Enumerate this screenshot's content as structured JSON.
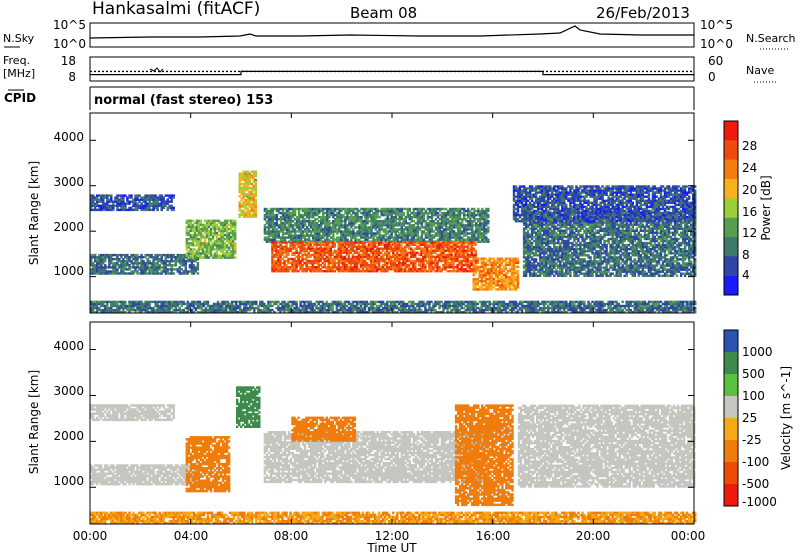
{
  "header": {
    "station": "Hankasalmi (fitACF)",
    "beam": "Beam 08",
    "date": "26/Feb/2013"
  },
  "noise_panel": {
    "left_label": "N.Sky",
    "right_label": "N.Search",
    "left_ticks": [
      "10^5",
      "10^0"
    ],
    "right_ticks": [
      "10^5",
      "10^0"
    ]
  },
  "freq_panel": {
    "left_label_1": "Freq.",
    "left_label_2": "[MHz]",
    "left_ticks": [
      "18",
      "8"
    ],
    "right_label": "Nave",
    "right_ticks": [
      "60",
      "0"
    ],
    "freq_mhz": [
      {
        "t": 0,
        "v": 10.0
      },
      {
        "t": 24,
        "v": 10.0
      }
    ],
    "nave": [
      {
        "t": 0,
        "v": 16
      },
      {
        "t": 6,
        "v": 16
      },
      {
        "t": 6,
        "v": 24
      },
      {
        "t": 18,
        "v": 24
      },
      {
        "t": 18,
        "v": 16
      },
      {
        "t": 24,
        "v": 16
      }
    ]
  },
  "cpid": {
    "label": "CPID",
    "text": "normal (fast stereo) 153"
  },
  "x_axis": {
    "label": "Time UT",
    "ticks": [
      "00:00",
      "04:00",
      "08:00",
      "12:00",
      "16:00",
      "20:00",
      "00:00"
    ],
    "range_hours": [
      0,
      24
    ]
  },
  "colors": {
    "power": [
      "#1b1bff",
      "#2e46a8",
      "#3f7a6a",
      "#55a050",
      "#9ccd3a",
      "#f5b21e",
      "#f47c12",
      "#f04a0c",
      "#ee1a0c"
    ],
    "velocity": [
      "#2d53b0",
      "#3f8a4c",
      "#58c23f",
      "#c6c6c0",
      "#f5a914",
      "#f07c0c",
      "#ef4a08",
      "#ee1a0c"
    ]
  },
  "chart_data": [
    {
      "type": "heatmap",
      "title": "Power",
      "ylabel": "Slant Range [km]",
      "xlabel": "",
      "ylim": [
        200,
        4600
      ],
      "xlim": [
        0,
        24
      ],
      "y_ticks": [
        "1000",
        "2000",
        "3000",
        "4000"
      ],
      "colorbar": {
        "label": "Power [dB]",
        "ticks": [
          "4",
          "8",
          "12",
          "16",
          "20",
          "24",
          "28"
        ],
        "range": [
          0,
          32
        ]
      },
      "regions": [
        {
          "t0": 0.0,
          "t1": 4.3,
          "r0": 1050,
          "r1": 1500,
          "value": 8
        },
        {
          "t0": 0.0,
          "t1": 3.3,
          "r0": 2450,
          "r1": 2800,
          "value": 6
        },
        {
          "t0": 3.8,
          "t1": 5.8,
          "r0": 1400,
          "r1": 2250,
          "value": 14
        },
        {
          "t0": 5.9,
          "t1": 6.6,
          "r0": 2300,
          "r1": 3300,
          "value": 18
        },
        {
          "t0": 6.9,
          "t1": 15.8,
          "r0": 1750,
          "r1": 2500,
          "value": 10
        },
        {
          "t0": 7.2,
          "t1": 15.3,
          "r0": 1100,
          "r1": 1750,
          "value": 26
        },
        {
          "t0": 15.2,
          "t1": 17.0,
          "r0": 700,
          "r1": 1400,
          "value": 22
        },
        {
          "t0": 17.2,
          "t1": 24.0,
          "r0": 1000,
          "r1": 2400,
          "value": 8
        },
        {
          "t0": 16.8,
          "t1": 24.0,
          "r0": 2200,
          "r1": 3000,
          "value": 6
        },
        {
          "t0": 0.0,
          "t1": 24.0,
          "r0": 200,
          "r1": 450,
          "value": 8
        }
      ]
    },
    {
      "type": "heatmap",
      "title": "Velocity",
      "ylabel": "Slant Range [km]",
      "xlabel": "Time UT",
      "ylim": [
        200,
        4600
      ],
      "xlim": [
        0,
        24
      ],
      "y_ticks": [
        "1000",
        "2000",
        "3000",
        "4000"
      ],
      "colorbar": {
        "label": "Velocity [m s^-1]",
        "ticks": [
          "1000",
          "500",
          "100",
          "25",
          "-25",
          "-100",
          "-500",
          "-1000"
        ],
        "range": [
          -1000,
          1000
        ]
      },
      "regions": [
        {
          "t0": 0.0,
          "t1": 4.3,
          "r0": 1050,
          "r1": 1500,
          "value": 0
        },
        {
          "t0": 0.0,
          "t1": 3.3,
          "r0": 2450,
          "r1": 2800,
          "value": 0
        },
        {
          "t0": 3.8,
          "t1": 5.5,
          "r0": 900,
          "r1": 2100,
          "value": -200
        },
        {
          "t0": 5.8,
          "t1": 6.7,
          "r0": 2300,
          "r1": 3200,
          "value": 200
        },
        {
          "t0": 6.9,
          "t1": 15.8,
          "r0": 1100,
          "r1": 2200,
          "value": 0
        },
        {
          "t0": 8.0,
          "t1": 10.5,
          "r0": 2000,
          "r1": 2500,
          "value": -200
        },
        {
          "t0": 14.5,
          "t1": 16.8,
          "r0": 600,
          "r1": 2800,
          "value": -300
        },
        {
          "t0": 17.0,
          "t1": 24.0,
          "r0": 1000,
          "r1": 2800,
          "value": 0
        },
        {
          "t0": 0.0,
          "t1": 24.0,
          "r0": 200,
          "r1": 450,
          "value": -100
        }
      ]
    }
  ]
}
